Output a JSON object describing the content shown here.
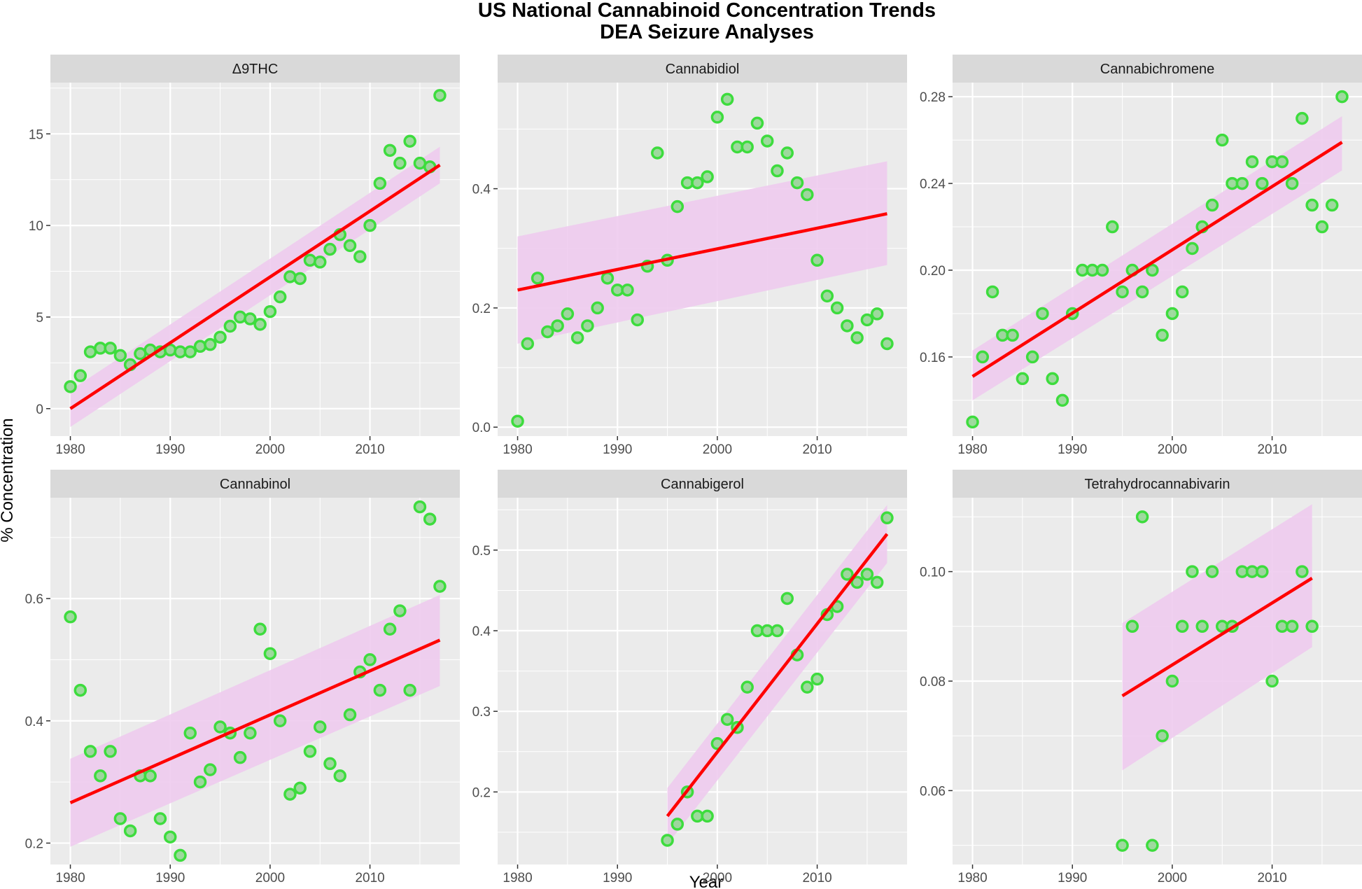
{
  "chart_data": {
    "type": "scatter",
    "title": "US National Cannabinoid Concentration Trends",
    "subtitle": "DEA Seizure Analyses",
    "xlabel": "Year",
    "ylabel": "% Concentration",
    "xlim": [
      1978,
      2019
    ],
    "xticks": [
      1980,
      1990,
      2000,
      2010
    ],
    "colors": {
      "points": "#3ddc3d",
      "point_edge": "#33bb33",
      "fit": "#ff0000",
      "band": "#eecbee",
      "panel": "#ebebeb",
      "strip": "#d9d9d9",
      "grid": "#ffffff"
    },
    "facets": [
      {
        "name": "Δ9THC",
        "ylim": [
          -1.5,
          17.8
        ],
        "yticks": [
          0,
          5,
          10,
          15
        ],
        "ytick_labels": [
          "0",
          "5",
          "10",
          "15"
        ],
        "x": [
          1980,
          1981,
          1982,
          1983,
          1984,
          1985,
          1986,
          1987,
          1988,
          1989,
          1990,
          1991,
          1992,
          1993,
          1994,
          1995,
          1996,
          1997,
          1998,
          1999,
          2000,
          2001,
          2002,
          2003,
          2004,
          2005,
          2006,
          2007,
          2008,
          2009,
          2010,
          2011,
          2012,
          2013,
          2014,
          2015,
          2016,
          2017
        ],
        "y": [
          1.2,
          1.8,
          3.1,
          3.3,
          3.3,
          2.9,
          2.4,
          3.0,
          3.2,
          3.1,
          3.2,
          3.1,
          3.1,
          3.4,
          3.5,
          3.9,
          4.5,
          5.0,
          4.9,
          4.6,
          5.3,
          6.1,
          7.2,
          7.1,
          8.1,
          8.0,
          8.7,
          9.5,
          8.9,
          8.3,
          10.0,
          12.3,
          14.1,
          13.4,
          14.6,
          13.4,
          13.2,
          17.1
        ],
        "fit": {
          "x0": 1980,
          "y0": 0.0,
          "x1": 2017,
          "y1": 13.3
        },
        "band": {
          "lower0": -1.0,
          "upper0": 1.0,
          "lower1": 12.3,
          "upper1": 14.3
        }
      },
      {
        "name": "Cannabidiol",
        "ylim": [
          -0.015,
          0.578
        ],
        "yticks": [
          0.0,
          0.2,
          0.4
        ],
        "ytick_labels": [
          "0.0",
          "0.2",
          "0.4"
        ],
        "x": [
          1980,
          1981,
          1982,
          1983,
          1984,
          1985,
          1986,
          1987,
          1988,
          1989,
          1990,
          1991,
          1992,
          1993,
          1994,
          1995,
          1996,
          1997,
          1998,
          1999,
          2000,
          2001,
          2002,
          2003,
          2004,
          2005,
          2006,
          2007,
          2008,
          2009,
          2010,
          2011,
          2012,
          2013,
          2014,
          2015,
          2016,
          2017
        ],
        "y": [
          0.01,
          0.14,
          0.25,
          0.16,
          0.17,
          0.19,
          0.15,
          0.17,
          0.2,
          0.25,
          0.23,
          0.23,
          0.18,
          0.27,
          0.46,
          0.28,
          0.37,
          0.41,
          0.41,
          0.42,
          0.52,
          0.55,
          0.47,
          0.47,
          0.51,
          0.48,
          0.43,
          0.46,
          0.41,
          0.39,
          0.28,
          0.22,
          0.2,
          0.17,
          0.15,
          0.18,
          0.19,
          0.14
        ],
        "fit": {
          "x0": 1980,
          "y0": 0.23,
          "x1": 2017,
          "y1": 0.358
        },
        "band": {
          "lower0": 0.14,
          "upper0": 0.32,
          "lower1": 0.272,
          "upper1": 0.446
        }
      },
      {
        "name": "Cannabichromene",
        "ylim": [
          0.1235,
          0.2865
        ],
        "yticks": [
          0.16,
          0.2,
          0.24,
          0.28
        ],
        "ytick_labels": [
          "0.16",
          "0.20",
          "0.24",
          "0.28"
        ],
        "x": [
          1980,
          1981,
          1982,
          1983,
          1984,
          1985,
          1986,
          1987,
          1988,
          1989,
          1990,
          1991,
          1992,
          1993,
          1994,
          1995,
          1996,
          1997,
          1998,
          1999,
          2000,
          2001,
          2002,
          2003,
          2004,
          2005,
          2006,
          2007,
          2008,
          2009,
          2010,
          2011,
          2012,
          2013,
          2014,
          2015,
          2016,
          2017
        ],
        "y": [
          0.13,
          0.16,
          0.19,
          0.17,
          0.17,
          0.15,
          0.16,
          0.18,
          0.15,
          0.14,
          0.18,
          0.2,
          0.2,
          0.2,
          0.22,
          0.19,
          0.2,
          0.19,
          0.2,
          0.17,
          0.18,
          0.19,
          0.21,
          0.22,
          0.23,
          0.26,
          0.24,
          0.24,
          0.25,
          0.24,
          0.25,
          0.25,
          0.24,
          0.27,
          0.23,
          0.22,
          0.23,
          0.28
        ],
        "fit": {
          "x0": 1980,
          "y0": 0.151,
          "x1": 2017,
          "y1": 0.259
        },
        "band": {
          "lower0": 0.14,
          "upper0": 0.163,
          "lower1": 0.246,
          "upper1": 0.271
        }
      },
      {
        "name": "Cannabinol",
        "ylim": [
          0.165,
          0.765
        ],
        "yticks": [
          0.2,
          0.4,
          0.6
        ],
        "ytick_labels": [
          "0.2",
          "0.4",
          "0.6"
        ],
        "x": [
          1980,
          1981,
          1982,
          1983,
          1984,
          1985,
          1986,
          1987,
          1988,
          1989,
          1990,
          1991,
          1992,
          1993,
          1994,
          1995,
          1996,
          1997,
          1998,
          1999,
          2000,
          2001,
          2002,
          2003,
          2004,
          2005,
          2006,
          2007,
          2008,
          2009,
          2010,
          2011,
          2012,
          2013,
          2014,
          2015,
          2016,
          2017
        ],
        "y": [
          0.57,
          0.45,
          0.35,
          0.31,
          0.35,
          0.24,
          0.22,
          0.31,
          0.31,
          0.24,
          0.21,
          0.18,
          0.38,
          0.3,
          0.32,
          0.39,
          0.38,
          0.34,
          0.38,
          0.55,
          0.51,
          0.4,
          0.28,
          0.29,
          0.35,
          0.39,
          0.33,
          0.31,
          0.41,
          0.48,
          0.5,
          0.45,
          0.55,
          0.58,
          0.45,
          0.75,
          0.73,
          0.62
        ],
        "fit": {
          "x0": 1980,
          "y0": 0.266,
          "x1": 2017,
          "y1": 0.532
        },
        "band": {
          "lower0": 0.194,
          "upper0": 0.338,
          "lower1": 0.457,
          "upper1": 0.606
        }
      },
      {
        "name": "Cannabigerol",
        "ylim": [
          0.11,
          0.565
        ],
        "yticks": [
          0.2,
          0.3,
          0.4,
          0.5
        ],
        "ytick_labels": [
          "0.2",
          "0.3",
          "0.4",
          "0.5"
        ],
        "x": [
          1995,
          1996,
          1997,
          1998,
          1999,
          2000,
          2001,
          2002,
          2003,
          2004,
          2005,
          2006,
          2007,
          2008,
          2009,
          2010,
          2011,
          2012,
          2013,
          2014,
          2015,
          2016,
          2017
        ],
        "y": [
          0.14,
          0.16,
          0.2,
          0.17,
          0.17,
          0.26,
          0.29,
          0.28,
          0.33,
          0.4,
          0.4,
          0.4,
          0.44,
          0.37,
          0.33,
          0.34,
          0.42,
          0.43,
          0.47,
          0.46,
          0.47,
          0.46,
          0.54
        ],
        "fit": {
          "x0": 1995,
          "y0": 0.17,
          "x1": 2017,
          "y1": 0.52
        },
        "band": {
          "lower0": 0.135,
          "upper0": 0.205,
          "lower1": 0.484,
          "upper1": 0.556
        }
      },
      {
        "name": "Tetrahydrocannabivarin",
        "ylim": [
          0.0465,
          0.1135
        ],
        "yticks": [
          0.06,
          0.08,
          0.1
        ],
        "ytick_labels": [
          "0.06",
          "0.08",
          "0.10"
        ],
        "x": [
          1995,
          1996,
          1997,
          1998,
          1999,
          2000,
          2001,
          2002,
          2003,
          2004,
          2005,
          2006,
          2007,
          2008,
          2009,
          2010,
          2011,
          2012,
          2013,
          2014
        ],
        "y": [
          0.05,
          0.09,
          0.11,
          0.05,
          0.07,
          0.08,
          0.09,
          0.1,
          0.09,
          0.1,
          0.09,
          0.09,
          0.1,
          0.1,
          0.1,
          0.08,
          0.09,
          0.09,
          0.1,
          0.09
        ],
        "fit": {
          "x0": 1995,
          "y0": 0.0773,
          "x1": 2014,
          "y1": 0.0988
        },
        "band": {
          "lower0": 0.0637,
          "upper0": 0.0906,
          "lower1": 0.0862,
          "upper1": 0.1123
        }
      }
    ]
  }
}
